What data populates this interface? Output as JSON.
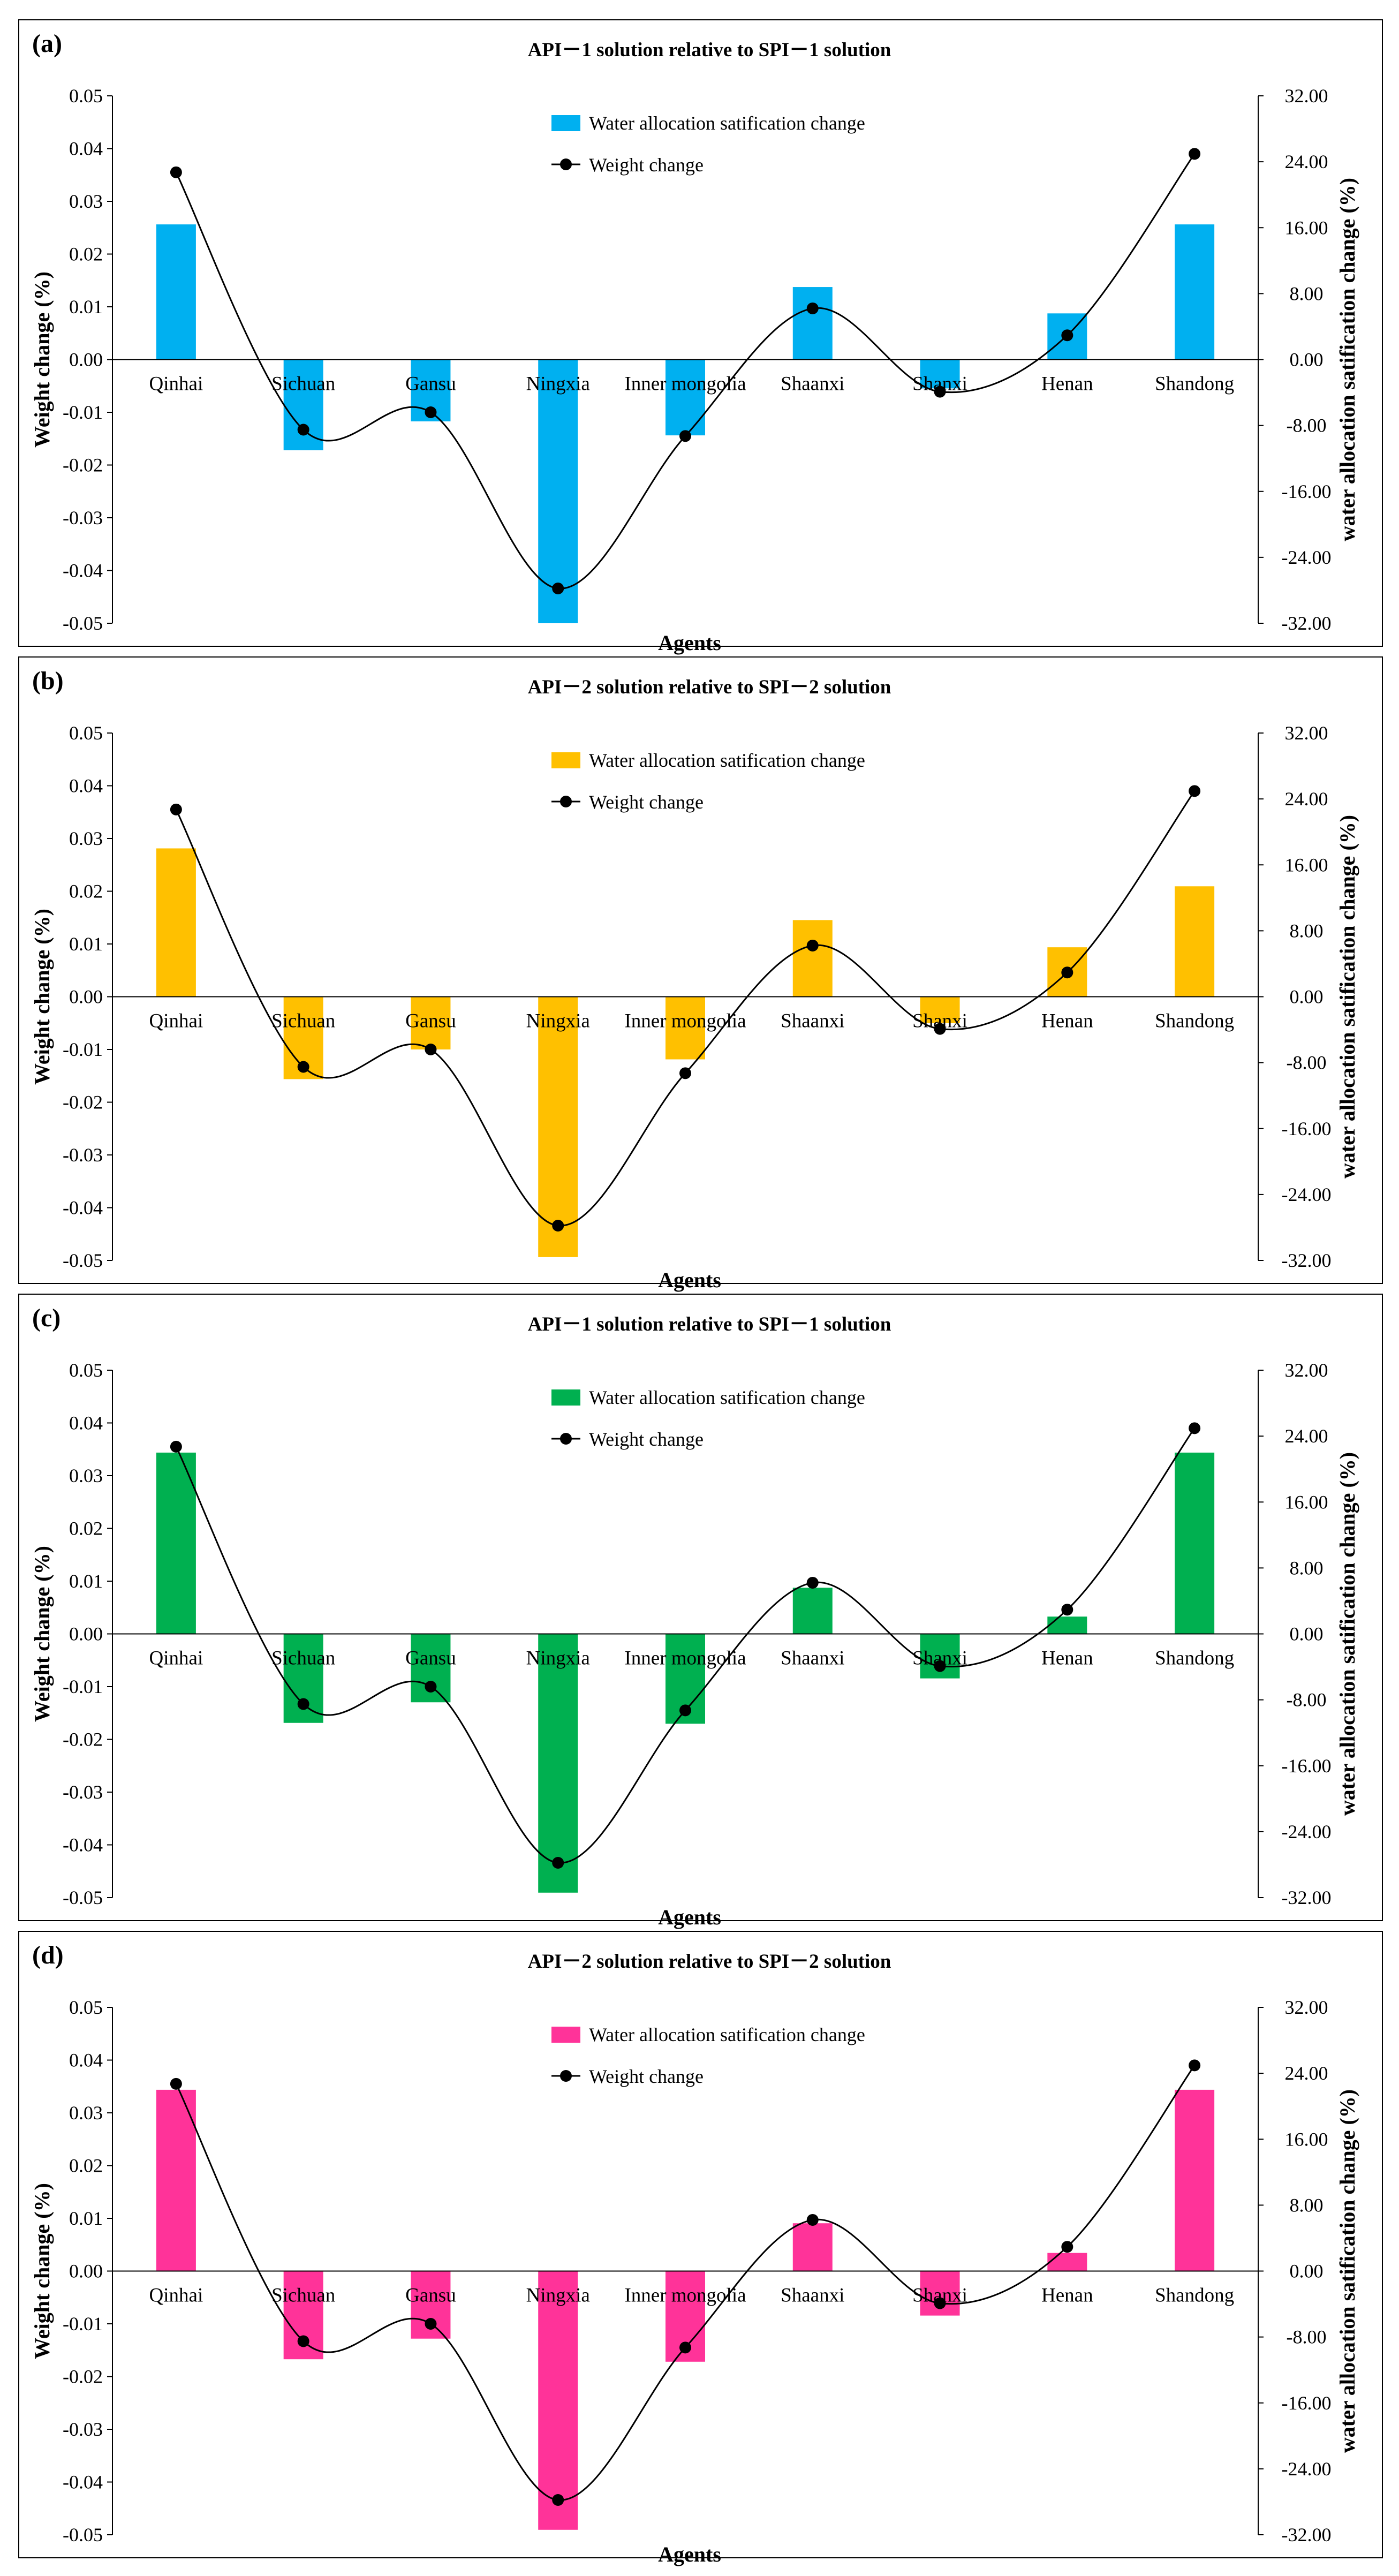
{
  "chart_data": [
    {
      "type": "bar+line",
      "panel_label": "(a)",
      "title": "API－1 solution relative to SPI－1 solution",
      "xlabel": "Agents",
      "ylabel_left": "Weight change (%)",
      "ylabel_right": "water allocation satification change (%)",
      "ylim_left": [
        -0.05,
        0.05
      ],
      "ylim_right": [
        -32,
        32
      ],
      "yticks_left": [
        "0.05",
        "0.04",
        "0.03",
        "0.02",
        "0.01",
        "0.00",
        "-0.01",
        "-0.02",
        "-0.03",
        "-0.04",
        "-0.05"
      ],
      "yticks_right": [
        "32.00",
        "24.00",
        "16.00",
        "8.00",
        "0.00",
        "-8.00",
        "-16.00",
        "-24.00",
        "-32.00"
      ],
      "categories": [
        "Qinhai",
        "Sichuan",
        "Gansu",
        "Ningxia",
        "Inner mongolia",
        "Shaanxi",
        "Shanxi",
        "Henan",
        "Shandong"
      ],
      "series": [
        {
          "name": "Water allocation satification change",
          "kind": "bar",
          "axis": "right",
          "color": "#00B0F0",
          "values": [
            16.4,
            -11.0,
            -7.5,
            -32.0,
            -9.2,
            8.8,
            -3.5,
            5.6,
            16.4
          ]
        },
        {
          "name": "Weight change",
          "kind": "line",
          "axis": "left",
          "color": "#000000",
          "values": [
            0.0355,
            -0.0133,
            -0.01,
            -0.0434,
            -0.0145,
            0.0097,
            -0.0061,
            0.0046,
            0.039
          ]
        }
      ],
      "legend": "top-center"
    },
    {
      "type": "bar+line",
      "panel_label": "(b)",
      "title": "API－2 solution relative to SPI－2 solution",
      "xlabel": "Agents",
      "ylabel_left": "Weight change (%)",
      "ylabel_right": "water allocation satification change (%)",
      "ylim_left": [
        -0.05,
        0.05
      ],
      "ylim_right": [
        -32,
        32
      ],
      "yticks_left": [
        "0.05",
        "0.04",
        "0.03",
        "0.02",
        "0.01",
        "0.00",
        "-0.01",
        "-0.02",
        "-0.03",
        "-0.04",
        "-0.05"
      ],
      "yticks_right": [
        "32.00",
        "24.00",
        "16.00",
        "8.00",
        "0.00",
        "-8.00",
        "-16.00",
        "-24.00",
        "-32.00"
      ],
      "categories": [
        "Qinhai",
        "Sichuan",
        "Gansu",
        "Ningxia",
        "Inner mongolia",
        "Shaanxi",
        "Shanxi",
        "Henan",
        "Shandong"
      ],
      "series": [
        {
          "name": "Water allocation satification change",
          "kind": "bar",
          "axis": "right",
          "color": "#FFC000",
          "values": [
            18.0,
            -10.0,
            -6.4,
            -31.6,
            -7.6,
            9.3,
            -3.2,
            6.0,
            13.4
          ]
        },
        {
          "name": "Weight change",
          "kind": "line",
          "axis": "left",
          "color": "#000000",
          "values": [
            0.0355,
            -0.0133,
            -0.01,
            -0.0434,
            -0.0145,
            0.0097,
            -0.0061,
            0.0046,
            0.039
          ]
        }
      ],
      "legend": "top-center"
    },
    {
      "type": "bar+line",
      "panel_label": "(c)",
      "title": "API－1 solution relative to SPI－1 solution",
      "xlabel": "Agents",
      "ylabel_left": "Weight change (%)",
      "ylabel_right": "water allocation satification change (%)",
      "ylim_left": [
        -0.05,
        0.05
      ],
      "ylim_right": [
        -32,
        32
      ],
      "yticks_left": [
        "0.05",
        "0.04",
        "0.03",
        "0.02",
        "0.01",
        "0.00",
        "-0.01",
        "-0.02",
        "-0.03",
        "-0.04",
        "-0.05"
      ],
      "yticks_right": [
        "32.00",
        "24.00",
        "16.00",
        "8.00",
        "0.00",
        "-8.00",
        "-16.00",
        "-24.00",
        "-32.00"
      ],
      "categories": [
        "Qinhai",
        "Sichuan",
        "Gansu",
        "Ningxia",
        "Inner mongolia",
        "Shaanxi",
        "Shanxi",
        "Henan",
        "Shandong"
      ],
      "series": [
        {
          "name": "Water allocation satification change",
          "kind": "bar",
          "axis": "right",
          "color": "#00B050",
          "values": [
            22.0,
            -10.8,
            -8.3,
            -31.4,
            -10.9,
            5.6,
            -5.4,
            2.1,
            22.0
          ]
        },
        {
          "name": "Weight change",
          "kind": "line",
          "axis": "left",
          "color": "#000000",
          "values": [
            0.0355,
            -0.0133,
            -0.01,
            -0.0434,
            -0.0145,
            0.0097,
            -0.0061,
            0.0046,
            0.039
          ]
        }
      ],
      "legend": "top-center"
    },
    {
      "type": "bar+line",
      "panel_label": "(d)",
      "title": "API－2 solution relative to SPI－2 solution",
      "xlabel": "Agents",
      "ylabel_left": "Weight change (%)",
      "ylabel_right": "water allocation satification change (%)",
      "ylim_left": [
        -0.05,
        0.05
      ],
      "ylim_right": [
        -32,
        32
      ],
      "yticks_left": [
        "0.05",
        "0.04",
        "0.03",
        "0.02",
        "0.01",
        "0.00",
        "-0.01",
        "-0.02",
        "-0.03",
        "-0.04",
        "-0.05"
      ],
      "yticks_right": [
        "32.00",
        "24.00",
        "16.00",
        "8.00",
        "0.00",
        "-8.00",
        "-16.00",
        "-24.00",
        "-32.00"
      ],
      "categories": [
        "Qinhai",
        "Sichuan",
        "Gansu",
        "Ningxia",
        "Inner mongolia",
        "Shaanxi",
        "Shanxi",
        "Henan",
        "Shandong"
      ],
      "series": [
        {
          "name": "Water allocation satification change",
          "kind": "bar",
          "axis": "right",
          "color": "#FF3399",
          "values": [
            22.0,
            -10.7,
            -8.2,
            -31.4,
            -11.0,
            5.8,
            -5.4,
            2.2,
            22.0
          ]
        },
        {
          "name": "Weight change",
          "kind": "line",
          "axis": "left",
          "color": "#000000",
          "values": [
            0.0355,
            -0.0133,
            -0.01,
            -0.0434,
            -0.0145,
            0.0097,
            -0.0061,
            0.0046,
            0.039
          ]
        }
      ],
      "legend": "top-center"
    }
  ]
}
